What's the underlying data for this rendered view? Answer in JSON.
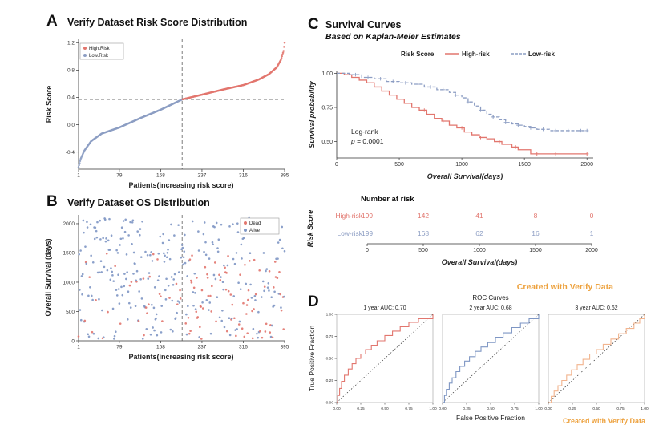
{
  "colors": {
    "high_risk": "#E2766E",
    "low_risk": "#8C9DC3",
    "dead": "#E2766E",
    "alive": "#7E96C4",
    "roc_1yr": "#E2766E",
    "roc_2yr": "#7E96C4",
    "roc_3yr": "#F2B48E",
    "watermark": "#EDA23F",
    "axis": "#333333",
    "dash_line": "#444444",
    "legend_border": "#999999"
  },
  "watermark_top": "Created with Verify Data",
  "watermark_bottom": "Created with Verify Data",
  "chart_data": [
    {
      "id": "risk_distribution",
      "type": "scatter",
      "panel_label": "A",
      "title": "Verify Dataset Risk Score Distribution",
      "xlabel": "Patients(increasing risk score)",
      "ylabel": "Risk Score",
      "xlim": [
        1,
        395
      ],
      "ylim": [
        -0.65,
        1.25
      ],
      "x_ticks": [
        1,
        79,
        158,
        237,
        316,
        395
      ],
      "y_ticks": [
        -0.4,
        0.0,
        0.4,
        0.8,
        1.2
      ],
      "legend": [
        {
          "label": "High.Risk",
          "color_key": "high_risk"
        },
        {
          "label": "Low.Risk",
          "color_key": "low_risk"
        }
      ],
      "n_patients": 395,
      "cutoff_patient": 199,
      "cutoff_risk": 0.37,
      "curve_anchors": [
        [
          1,
          -0.62
        ],
        [
          5,
          -0.5
        ],
        [
          12,
          -0.38
        ],
        [
          25,
          -0.24
        ],
        [
          45,
          -0.13
        ],
        [
          79,
          -0.04
        ],
        [
          120,
          0.1
        ],
        [
          158,
          0.22
        ],
        [
          199,
          0.37
        ],
        [
          237,
          0.44
        ],
        [
          280,
          0.52
        ],
        [
          316,
          0.58
        ],
        [
          345,
          0.66
        ],
        [
          365,
          0.74
        ],
        [
          380,
          0.84
        ],
        [
          388,
          0.95
        ],
        [
          393,
          1.08
        ],
        [
          395,
          1.2
        ]
      ]
    },
    {
      "id": "os_distribution",
      "type": "scatter",
      "panel_label": "B",
      "title": "Verify Dataset OS Distribution",
      "xlabel": "Patients(increasing risk score)",
      "ylabel": "Overall Survival (days)",
      "xlim": [
        1,
        395
      ],
      "ylim": [
        0,
        2150
      ],
      "x_ticks": [
        1,
        79,
        158,
        237,
        316,
        395
      ],
      "y_ticks": [
        0,
        500,
        1000,
        1500,
        2000
      ],
      "legend": [
        {
          "label": "Dead",
          "color_key": "dead"
        },
        {
          "label": "Alive",
          "color_key": "alive"
        }
      ],
      "cutoff_patient": 199,
      "scatter_params": {
        "n": 395,
        "seed": 7,
        "dead_rate_low_risk": 0.17,
        "dead_rate_high_risk": 0.42,
        "os_max": 2100,
        "dead_os_max": 1500
      }
    },
    {
      "id": "km_curves",
      "type": "line",
      "panel_label": "C",
      "title": "Survival Curves",
      "subtitle": "Based on Kaplan-Meier Estimates",
      "legend_title": "Risk Score",
      "xlabel": "Overall Survival(days)",
      "ylabel": "Survival probability",
      "xlim": [
        0,
        2050
      ],
      "ylim": [
        0.38,
        1.02
      ],
      "x_ticks": [
        0,
        500,
        1000,
        1500,
        2000
      ],
      "y_ticks": [
        0.5,
        0.75,
        1.0
      ],
      "annotation": {
        "line1": "Log-rank",
        "line2_prefix": "p",
        "line2_value": " = 0.0001"
      },
      "series": [
        {
          "name": "High-risk",
          "color_key": "high_risk",
          "style": "solid",
          "points": [
            [
              0,
              1.0
            ],
            [
              60,
              0.99
            ],
            [
              120,
              0.97
            ],
            [
              180,
              0.95
            ],
            [
              240,
              0.93
            ],
            [
              300,
              0.9
            ],
            [
              360,
              0.87
            ],
            [
              420,
              0.84
            ],
            [
              480,
              0.81
            ],
            [
              540,
              0.78
            ],
            [
              600,
              0.75
            ],
            [
              660,
              0.73
            ],
            [
              720,
              0.7
            ],
            [
              780,
              0.67
            ],
            [
              840,
              0.65
            ],
            [
              900,
              0.62
            ],
            [
              960,
              0.6
            ],
            [
              1020,
              0.57
            ],
            [
              1080,
              0.55
            ],
            [
              1140,
              0.53
            ],
            [
              1200,
              0.52
            ],
            [
              1260,
              0.5
            ],
            [
              1320,
              0.48
            ],
            [
              1400,
              0.46
            ],
            [
              1450,
              0.44
            ],
            [
              1550,
              0.41
            ],
            [
              2000,
              0.41
            ]
          ],
          "censor_x": [
            700,
            850,
            1000,
            1150,
            1300,
            1430,
            1600,
            1750,
            2000
          ]
        },
        {
          "name": "Low-risk",
          "color_key": "low_risk",
          "style": "dashed",
          "points": [
            [
              0,
              1.0
            ],
            [
              100,
              0.99
            ],
            [
              200,
              0.97
            ],
            [
              300,
              0.96
            ],
            [
              400,
              0.94
            ],
            [
              500,
              0.93
            ],
            [
              600,
              0.92
            ],
            [
              700,
              0.9
            ],
            [
              800,
              0.88
            ],
            [
              900,
              0.86
            ],
            [
              950,
              0.84
            ],
            [
              1000,
              0.82
            ],
            [
              1050,
              0.79
            ],
            [
              1100,
              0.76
            ],
            [
              1150,
              0.73
            ],
            [
              1200,
              0.7
            ],
            [
              1250,
              0.68
            ],
            [
              1300,
              0.66
            ],
            [
              1350,
              0.64
            ],
            [
              1400,
              0.63
            ],
            [
              1450,
              0.62
            ],
            [
              1500,
              0.61
            ],
            [
              1550,
              0.6
            ],
            [
              1600,
              0.59
            ],
            [
              1700,
              0.58
            ],
            [
              2000,
              0.58
            ]
          ],
          "censor_x": [
            150,
            250,
            350,
            450,
            550,
            650,
            750,
            850,
            950,
            1050,
            1150,
            1250,
            1350,
            1450,
            1550,
            1650,
            1750,
            1850,
            1950,
            2000
          ]
        }
      ]
    },
    {
      "id": "number_at_risk",
      "type": "table",
      "title": "Number at risk",
      "ylabel": "Risk Score",
      "xlabel": "Overall Survival(days)",
      "x_ticks": [
        0,
        500,
        1000,
        1500,
        2000
      ],
      "rows": [
        {
          "name": "High-risk",
          "color_key": "high_risk",
          "values": [
            199,
            142,
            41,
            8,
            0
          ]
        },
        {
          "name": "Low-risk",
          "color_key": "low_risk",
          "values": [
            199,
            168,
            62,
            16,
            1
          ]
        }
      ]
    },
    {
      "id": "roc_curves",
      "type": "line",
      "panel_label": "D",
      "title": "ROC Curves",
      "xlabel": "False Positive Fraction",
      "ylabel": "True Positive Fraction",
      "xlim": [
        0,
        1
      ],
      "ylim": [
        0,
        1
      ],
      "ticks": [
        0,
        0.25,
        0.5,
        0.75,
        1.0
      ],
      "diagonal": true,
      "subplots": [
        {
          "title": "1 year AUC: 0.70",
          "auc": 0.7,
          "color_key": "roc_1yr",
          "points": [
            [
              0,
              0
            ],
            [
              0.01,
              0.08
            ],
            [
              0.03,
              0.16
            ],
            [
              0.05,
              0.24
            ],
            [
              0.08,
              0.31
            ],
            [
              0.12,
              0.38
            ],
            [
              0.16,
              0.44
            ],
            [
              0.2,
              0.5
            ],
            [
              0.25,
              0.55
            ],
            [
              0.3,
              0.6
            ],
            [
              0.36,
              0.65
            ],
            [
              0.42,
              0.7
            ],
            [
              0.5,
              0.76
            ],
            [
              0.58,
              0.81
            ],
            [
              0.66,
              0.86
            ],
            [
              0.75,
              0.91
            ],
            [
              0.85,
              0.95
            ],
            [
              1,
              1
            ]
          ]
        },
        {
          "title": "2 year AUC: 0.68",
          "auc": 0.68,
          "color_key": "roc_2yr",
          "points": [
            [
              0,
              0
            ],
            [
              0.02,
              0.08
            ],
            [
              0.04,
              0.15
            ],
            [
              0.07,
              0.22
            ],
            [
              0.1,
              0.28
            ],
            [
              0.14,
              0.35
            ],
            [
              0.18,
              0.41
            ],
            [
              0.23,
              0.47
            ],
            [
              0.28,
              0.52
            ],
            [
              0.34,
              0.58
            ],
            [
              0.4,
              0.63
            ],
            [
              0.47,
              0.68
            ],
            [
              0.55,
              0.74
            ],
            [
              0.63,
              0.79
            ],
            [
              0.72,
              0.85
            ],
            [
              0.81,
              0.9
            ],
            [
              0.9,
              0.95
            ],
            [
              1,
              1
            ]
          ]
        },
        {
          "title": "3 year AUC: 0.62",
          "auc": 0.62,
          "color_key": "roc_3yr",
          "points": [
            [
              0,
              0
            ],
            [
              0.03,
              0.07
            ],
            [
              0.06,
              0.13
            ],
            [
              0.1,
              0.19
            ],
            [
              0.14,
              0.25
            ],
            [
              0.19,
              0.31
            ],
            [
              0.24,
              0.37
            ],
            [
              0.3,
              0.43
            ],
            [
              0.36,
              0.49
            ],
            [
              0.43,
              0.55
            ],
            [
              0.5,
              0.6
            ],
            [
              0.57,
              0.66
            ],
            [
              0.65,
              0.72
            ],
            [
              0.73,
              0.78
            ],
            [
              0.81,
              0.84
            ],
            [
              0.89,
              0.9
            ],
            [
              0.95,
              0.95
            ],
            [
              1,
              1
            ]
          ]
        }
      ]
    }
  ]
}
